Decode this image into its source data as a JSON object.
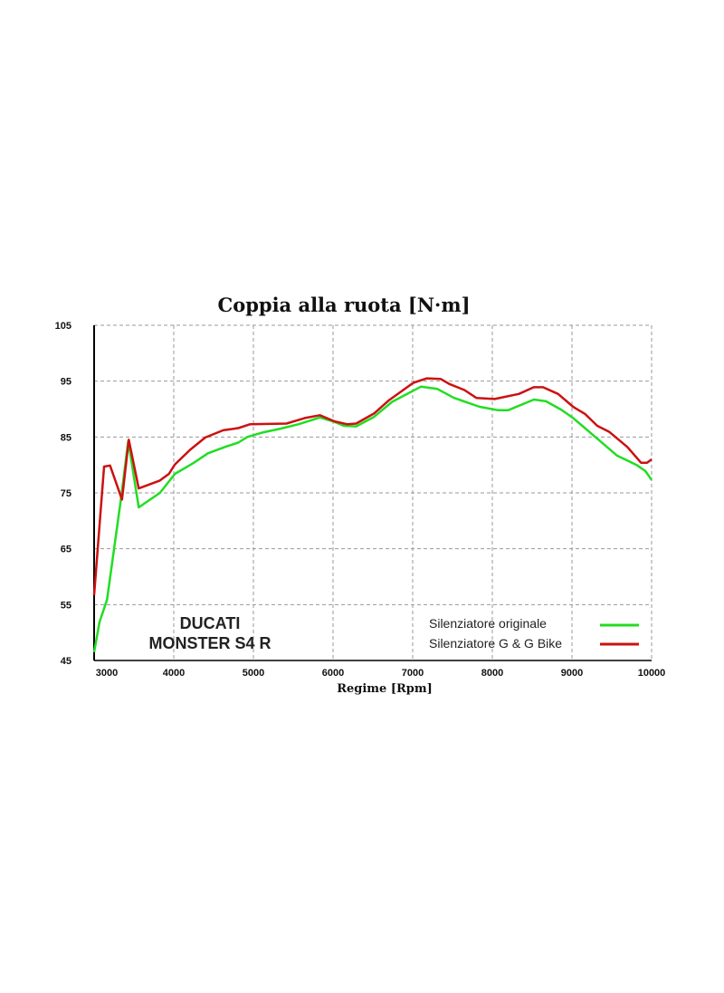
{
  "chart_data": {
    "type": "line",
    "title": "Coppia alla ruota [N·m]",
    "xlabel": "Regime [Rpm]",
    "ylabel": "",
    "xlim": [
      3000,
      10000
    ],
    "ylim": [
      45,
      105
    ],
    "xticks": [
      3000,
      4000,
      5000,
      6000,
      7000,
      8000,
      9000,
      10000
    ],
    "yticks": [
      45,
      55,
      65,
      75,
      85,
      95,
      105
    ],
    "grid": true,
    "legend_position": "bottom-right",
    "annotation": [
      "DUCATI",
      "MONSTER S4 R"
    ],
    "series": [
      {
        "name": "Silenziatore originale",
        "color": "#22dd22",
        "x": [
          3000,
          3068,
          3163,
          3333,
          3428,
          3560,
          3826,
          4015,
          4242,
          4432,
          4659,
          4810,
          4924,
          5114,
          5341,
          5568,
          5835,
          6020,
          6136,
          6290,
          6515,
          6742,
          7102,
          7310,
          7519,
          7841,
          8068,
          8201,
          8523,
          8674,
          8864,
          9015,
          9129,
          9318,
          9564,
          9811,
          9924,
          10000
        ],
        "y": [
          46.5,
          51.9,
          55.9,
          73.5,
          84.3,
          72.4,
          75.0,
          78.4,
          80.3,
          82.1,
          83.3,
          84.0,
          85.0,
          85.8,
          86.5,
          87.3,
          88.5,
          87.7,
          87.0,
          86.9,
          88.6,
          91.3,
          94.0,
          93.6,
          92.0,
          90.4,
          89.8,
          89.8,
          91.7,
          91.4,
          89.9,
          88.4,
          87.0,
          84.7,
          81.7,
          80.0,
          78.9,
          77.3
        ]
      },
      {
        "name": "Silenziatore G & G Bike",
        "color": "#cc1111",
        "x": [
          3000,
          3125,
          3200,
          3350,
          3435,
          3560,
          3825,
          3940,
          4015,
          4205,
          4395,
          4620,
          4810,
          4960,
          5415,
          5645,
          5835,
          6020,
          6175,
          6290,
          6515,
          6705,
          7008,
          7178,
          7350,
          7460,
          7650,
          7800,
          8030,
          8333,
          8520,
          8636,
          8826,
          9015,
          9167,
          9318,
          9470,
          9697,
          9867,
          9943,
          10000
        ],
        "y": [
          56.7,
          79.7,
          79.9,
          73.8,
          84.5,
          75.8,
          77.2,
          78.4,
          80.1,
          82.7,
          84.9,
          86.2,
          86.6,
          87.3,
          87.4,
          88.4,
          88.9,
          87.8,
          87.3,
          87.4,
          89.2,
          91.6,
          94.7,
          95.5,
          95.4,
          94.5,
          93.4,
          92.0,
          91.8,
          92.7,
          93.9,
          93.9,
          92.7,
          90.4,
          89.1,
          87.0,
          85.9,
          83.2,
          80.4,
          80.4,
          81.0
        ]
      }
    ]
  }
}
